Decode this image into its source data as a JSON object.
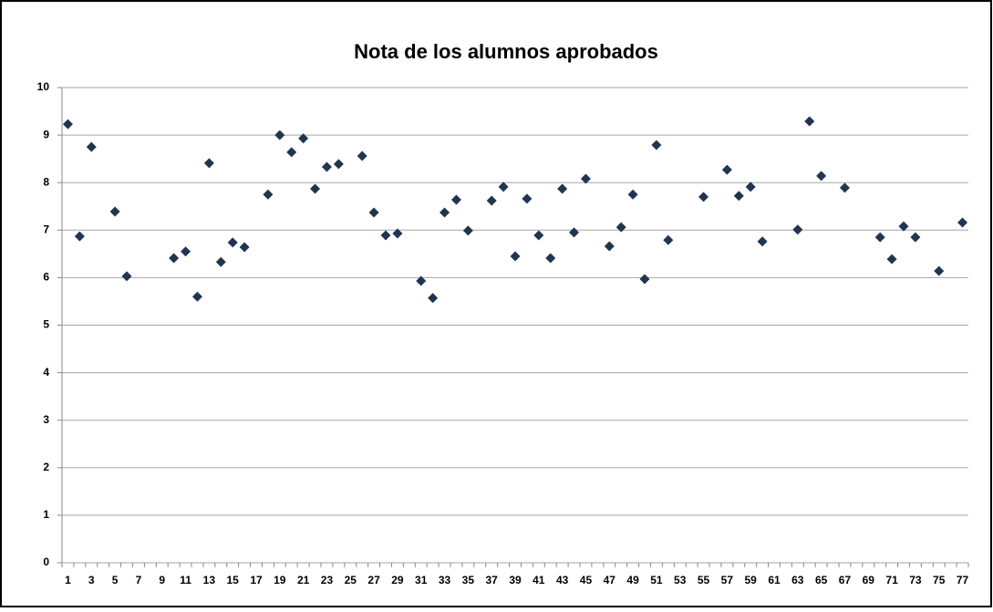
{
  "chart_data": {
    "type": "scatter",
    "title": "Nota de los alumnos aprobados",
    "categories": [
      1,
      null,
      3,
      null,
      5,
      null,
      7,
      null,
      9,
      null,
      11,
      null,
      13,
      null,
      15,
      null,
      17,
      null,
      19,
      null,
      21,
      null,
      23,
      null,
      25,
      null,
      27,
      null,
      29,
      null,
      31,
      null,
      33,
      null,
      35,
      null,
      37,
      null,
      39,
      null,
      41,
      null,
      43,
      null,
      45,
      null,
      47,
      null,
      49,
      null,
      51,
      null,
      53,
      null,
      55,
      null,
      57,
      null,
      59,
      null,
      61,
      null,
      63,
      null,
      65,
      null,
      67,
      null,
      69,
      null,
      71,
      null,
      73,
      null,
      75,
      null,
      77
    ],
    "values": [
      9.23,
      6.87,
      8.75,
      null,
      7.39,
      6.03,
      null,
      null,
      null,
      6.41,
      6.55,
      5.6,
      8.41,
      6.33,
      6.74,
      6.64,
      null,
      7.75,
      9.0,
      8.64,
      8.93,
      7.87,
      8.33,
      8.39,
      null,
      8.56,
      7.37,
      6.89,
      6.93,
      null,
      5.93,
      5.57,
      7.37,
      7.64,
      6.99,
      null,
      7.62,
      7.91,
      6.45,
      7.66,
      6.89,
      6.41,
      7.87,
      6.95,
      8.08,
      null,
      6.66,
      7.06,
      7.75,
      5.97,
      8.79,
      6.79,
      null,
      null,
      7.7,
      null,
      8.27,
      7.72,
      7.91,
      6.76,
      null,
      null,
      7.01,
      9.29,
      8.14,
      null,
      7.89,
      null,
      null,
      6.85,
      6.39,
      7.08,
      6.85,
      null,
      6.14,
      null,
      7.16
    ],
    "color": "#1f3550",
    "ylim": [
      0,
      10
    ],
    "yticks": [
      0,
      1,
      2,
      3,
      4,
      5,
      6,
      7,
      8,
      9,
      10
    ],
    "grid": true
  }
}
